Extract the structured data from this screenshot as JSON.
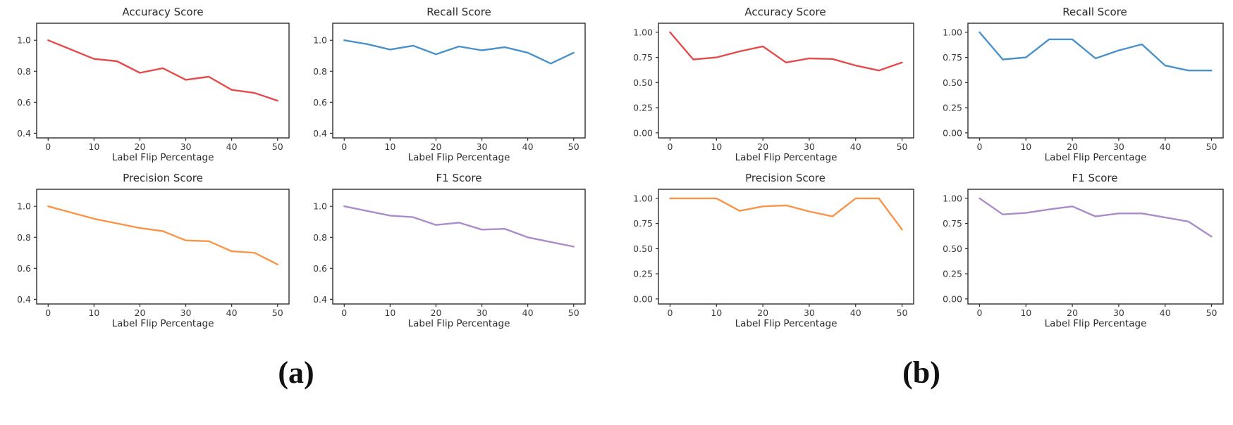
{
  "figure": {
    "captions": {
      "a": "(a)",
      "b": "(b)"
    },
    "xlabel": "Label Flip Percentage"
  },
  "colors": {
    "accuracy": "#e34b4d",
    "recall": "#4a90c9",
    "precision": "#fa9449",
    "f1": "#a98cc9",
    "axis": "#2e2e2e",
    "tick_text": "#3a3a3a"
  },
  "chart_data": [
    {
      "type": "line",
      "panel": "a",
      "title": "Accuracy Score",
      "xlabel": "Label Flip Percentage",
      "color": "#e34b4d",
      "x": [
        0,
        5,
        10,
        15,
        20,
        25,
        30,
        35,
        40,
        45,
        50
      ],
      "y": [
        1.0,
        0.94,
        0.88,
        0.865,
        0.79,
        0.82,
        0.745,
        0.765,
        0.68,
        0.66,
        0.61
      ],
      "xlim": [
        -2.5,
        52.5
      ],
      "ylim": [
        0.37,
        1.11
      ],
      "xticks": [
        0,
        10,
        20,
        30,
        40,
        50
      ],
      "xtick_labels": [
        "0",
        "10",
        "20",
        "30",
        "40",
        "50"
      ],
      "yticks": [
        0.4,
        0.6,
        0.8,
        1.0
      ],
      "ytick_labels": [
        "0.4",
        "0.6",
        "0.8",
        "1.0"
      ],
      "grid": false,
      "legend": "none"
    },
    {
      "type": "line",
      "panel": "a",
      "title": "Recall Score",
      "xlabel": "Label Flip Percentage",
      "color": "#4a90c9",
      "x": [
        0,
        5,
        10,
        15,
        20,
        25,
        30,
        35,
        40,
        45,
        50
      ],
      "y": [
        1.0,
        0.975,
        0.94,
        0.965,
        0.91,
        0.96,
        0.935,
        0.955,
        0.92,
        0.85,
        0.92
      ],
      "xlim": [
        -2.5,
        52.5
      ],
      "ylim": [
        0.37,
        1.11
      ],
      "xticks": [
        0,
        10,
        20,
        30,
        40,
        50
      ],
      "xtick_labels": [
        "0",
        "10",
        "20",
        "30",
        "40",
        "50"
      ],
      "yticks": [
        0.4,
        0.6,
        0.8,
        1.0
      ],
      "ytick_labels": [
        "0.4",
        "0.6",
        "0.8",
        "1.0"
      ],
      "grid": false,
      "legend": "none"
    },
    {
      "type": "line",
      "panel": "a",
      "title": "Precision Score",
      "xlabel": "Label Flip Percentage",
      "color": "#fa9449",
      "x": [
        0,
        5,
        10,
        15,
        20,
        25,
        30,
        35,
        40,
        45,
        50
      ],
      "y": [
        1.0,
        0.96,
        0.92,
        0.89,
        0.86,
        0.84,
        0.78,
        0.775,
        0.71,
        0.7,
        0.625
      ],
      "xlim": [
        -2.5,
        52.5
      ],
      "ylim": [
        0.37,
        1.11
      ],
      "xticks": [
        0,
        10,
        20,
        30,
        40,
        50
      ],
      "xtick_labels": [
        "0",
        "10",
        "20",
        "30",
        "40",
        "50"
      ],
      "yticks": [
        0.4,
        0.6,
        0.8,
        1.0
      ],
      "ytick_labels": [
        "0.4",
        "0.6",
        "0.8",
        "1.0"
      ],
      "grid": false,
      "legend": "none"
    },
    {
      "type": "line",
      "panel": "a",
      "title": "F1 Score",
      "xlabel": "Label Flip Percentage",
      "color": "#a98cc9",
      "x": [
        0,
        5,
        10,
        15,
        20,
        25,
        30,
        35,
        40,
        45,
        50
      ],
      "y": [
        1.0,
        0.97,
        0.94,
        0.93,
        0.88,
        0.895,
        0.85,
        0.855,
        0.8,
        0.77,
        0.74
      ],
      "xlim": [
        -2.5,
        52.5
      ],
      "ylim": [
        0.37,
        1.11
      ],
      "xticks": [
        0,
        10,
        20,
        30,
        40,
        50
      ],
      "xtick_labels": [
        "0",
        "10",
        "20",
        "30",
        "40",
        "50"
      ],
      "yticks": [
        0.4,
        0.6,
        0.8,
        1.0
      ],
      "ytick_labels": [
        "0.4",
        "0.6",
        "0.8",
        "1.0"
      ],
      "grid": false,
      "legend": "none"
    },
    {
      "type": "line",
      "panel": "b",
      "title": "Accuracy Score",
      "xlabel": "Label Flip Percentage",
      "color": "#e34b4d",
      "x": [
        0,
        5,
        10,
        15,
        20,
        25,
        30,
        35,
        40,
        45,
        50
      ],
      "y": [
        1.0,
        0.73,
        0.75,
        0.81,
        0.86,
        0.7,
        0.74,
        0.735,
        0.67,
        0.62,
        0.7
      ],
      "xlim": [
        -2.5,
        52.5
      ],
      "ylim": [
        -0.05,
        1.09
      ],
      "xticks": [
        0,
        10,
        20,
        30,
        40,
        50
      ],
      "xtick_labels": [
        "0",
        "10",
        "20",
        "30",
        "40",
        "50"
      ],
      "yticks": [
        0.0,
        0.25,
        0.5,
        0.75,
        1.0
      ],
      "ytick_labels": [
        "0.00",
        "0.25",
        "0.50",
        "0.75",
        "1.00"
      ],
      "grid": false,
      "legend": "none"
    },
    {
      "type": "line",
      "panel": "b",
      "title": "Recall Score",
      "xlabel": "Label Flip Percentage",
      "color": "#4a90c9",
      "x": [
        0,
        5,
        10,
        15,
        20,
        25,
        30,
        35,
        40,
        45,
        50
      ],
      "y": [
        1.0,
        0.73,
        0.75,
        0.93,
        0.93,
        0.74,
        0.82,
        0.88,
        0.67,
        0.62,
        0.62
      ],
      "xlim": [
        -2.5,
        52.5
      ],
      "ylim": [
        -0.05,
        1.09
      ],
      "xticks": [
        0,
        10,
        20,
        30,
        40,
        50
      ],
      "xtick_labels": [
        "0",
        "10",
        "20",
        "30",
        "40",
        "50"
      ],
      "yticks": [
        0.0,
        0.25,
        0.5,
        0.75,
        1.0
      ],
      "ytick_labels": [
        "0.00",
        "0.25",
        "0.50",
        "0.75",
        "1.00"
      ],
      "grid": false,
      "legend": "none"
    },
    {
      "type": "line",
      "panel": "b",
      "title": "Precision Score",
      "xlabel": "Label Flip Percentage",
      "color": "#fa9449",
      "x": [
        0,
        5,
        10,
        15,
        20,
        25,
        30,
        35,
        40,
        45,
        50
      ],
      "y": [
        1.0,
        1.0,
        1.0,
        0.875,
        0.92,
        0.93,
        0.87,
        0.82,
        1.0,
        1.0,
        0.69
      ],
      "xlim": [
        -2.5,
        52.5
      ],
      "ylim": [
        -0.05,
        1.09
      ],
      "xticks": [
        0,
        10,
        20,
        30,
        40,
        50
      ],
      "xtick_labels": [
        "0",
        "10",
        "20",
        "30",
        "40",
        "50"
      ],
      "yticks": [
        0.0,
        0.25,
        0.5,
        0.75,
        1.0
      ],
      "ytick_labels": [
        "0.00",
        "0.25",
        "0.50",
        "0.75",
        "1.00"
      ],
      "grid": false,
      "legend": "none"
    },
    {
      "type": "line",
      "panel": "b",
      "title": "F1 Score",
      "xlabel": "Label Flip Percentage",
      "color": "#a98cc9",
      "x": [
        0,
        5,
        10,
        15,
        20,
        25,
        30,
        35,
        40,
        45,
        50
      ],
      "y": [
        1.0,
        0.84,
        0.855,
        0.89,
        0.92,
        0.82,
        0.85,
        0.85,
        0.81,
        0.77,
        0.62
      ],
      "xlim": [
        -2.5,
        52.5
      ],
      "ylim": [
        -0.05,
        1.09
      ],
      "xticks": [
        0,
        10,
        20,
        30,
        40,
        50
      ],
      "xtick_labels": [
        "0",
        "10",
        "20",
        "30",
        "40",
        "50"
      ],
      "yticks": [
        0.0,
        0.25,
        0.5,
        0.75,
        1.0
      ],
      "ytick_labels": [
        "0.00",
        "0.25",
        "0.50",
        "0.75",
        "1.00"
      ],
      "grid": false,
      "legend": "none"
    }
  ]
}
